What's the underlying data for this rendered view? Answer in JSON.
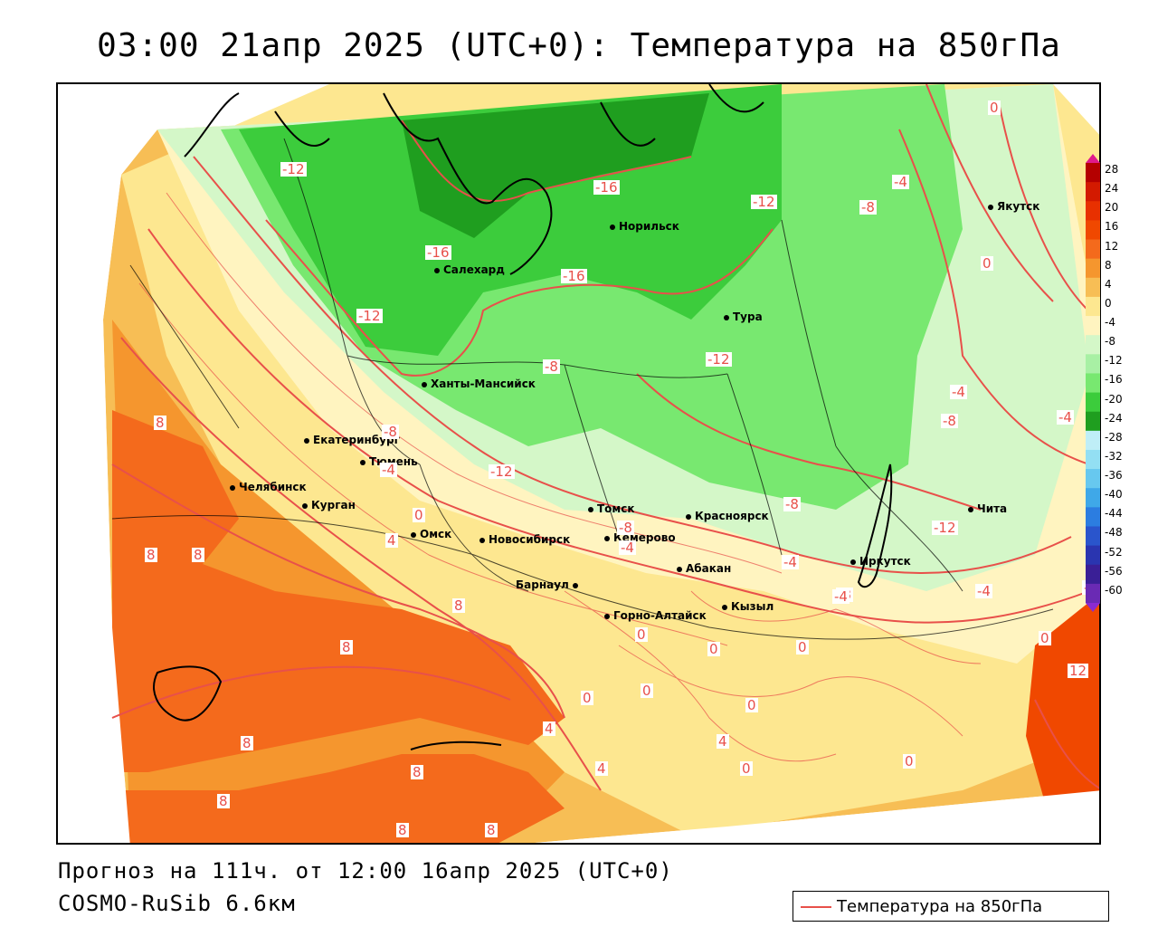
{
  "title": "03:00 21апр 2025 (UTC+0): Температура на 850гПа",
  "footer": {
    "forecast": "Прогноз на 111ч. от 12:00 16апр 2025 (UTC+0)",
    "model": "COSMO-RuSib 6.6км"
  },
  "legend": {
    "label": "Температура на 850гПа",
    "line_color": "#e8504a"
  },
  "colorbar": {
    "ticks": [
      "28",
      "24",
      "20",
      "16",
      "12",
      "8",
      "4",
      "0",
      "-4",
      "-8",
      "-12",
      "-16",
      "-20",
      "-24",
      "-28",
      "-32",
      "-36",
      "-40",
      "-44",
      "-48",
      "-52",
      "-56",
      "-60"
    ],
    "colors": [
      "#b40000",
      "#d31a00",
      "#e83000",
      "#f04800",
      "#f46a1c",
      "#f5962e",
      "#f7be55",
      "#fde790",
      "#fff4c0",
      "#d4f7c8",
      "#a8f0a4",
      "#78e870",
      "#3ccc3c",
      "#1f9e1f",
      "#bfeef7",
      "#93dff3",
      "#67c8ef",
      "#3fa8e8",
      "#2c7de0",
      "#2a55cc",
      "#2a35b0",
      "#3a1f96",
      "#6a2ab4"
    ]
  },
  "cities": [
    {
      "name": "Якутск"
    },
    {
      "name": "Норильск"
    },
    {
      "name": "Салехард"
    },
    {
      "name": "Тура"
    },
    {
      "name": "Ханты-Мансийск"
    },
    {
      "name": "Екатеринбург"
    },
    {
      "name": "Тюмень"
    },
    {
      "name": "Челябинск"
    },
    {
      "name": "Курган"
    },
    {
      "name": "Омск"
    },
    {
      "name": "Новосибирск"
    },
    {
      "name": "Томск"
    },
    {
      "name": "Кемерово"
    },
    {
      "name": "Красноярск"
    },
    {
      "name": "Абакан"
    },
    {
      "name": "Барнаул"
    },
    {
      "name": "Горно-Алтайск"
    },
    {
      "name": "Кызыл"
    },
    {
      "name": "Иркутск"
    },
    {
      "name": "Чита"
    }
  ],
  "contour_labels": [
    "-12",
    "-16",
    "-16",
    "-12",
    "-12",
    "-16",
    "-12",
    "-12",
    "-8",
    "-8",
    "-8",
    "-4",
    "-4",
    "-8",
    "-4",
    "-4",
    "-8",
    "-4",
    "-12",
    "-8",
    "-8",
    "-4",
    "-4",
    "-4",
    "0",
    "0",
    "8",
    "8",
    "8",
    "8",
    "8",
    "8",
    "8",
    "8",
    "8",
    "4",
    "4",
    "4",
    "8",
    "0",
    "0",
    "0",
    "0",
    "0",
    "0",
    "4",
    "0",
    "0",
    "12",
    "0",
    "0",
    "-4"
  ]
}
